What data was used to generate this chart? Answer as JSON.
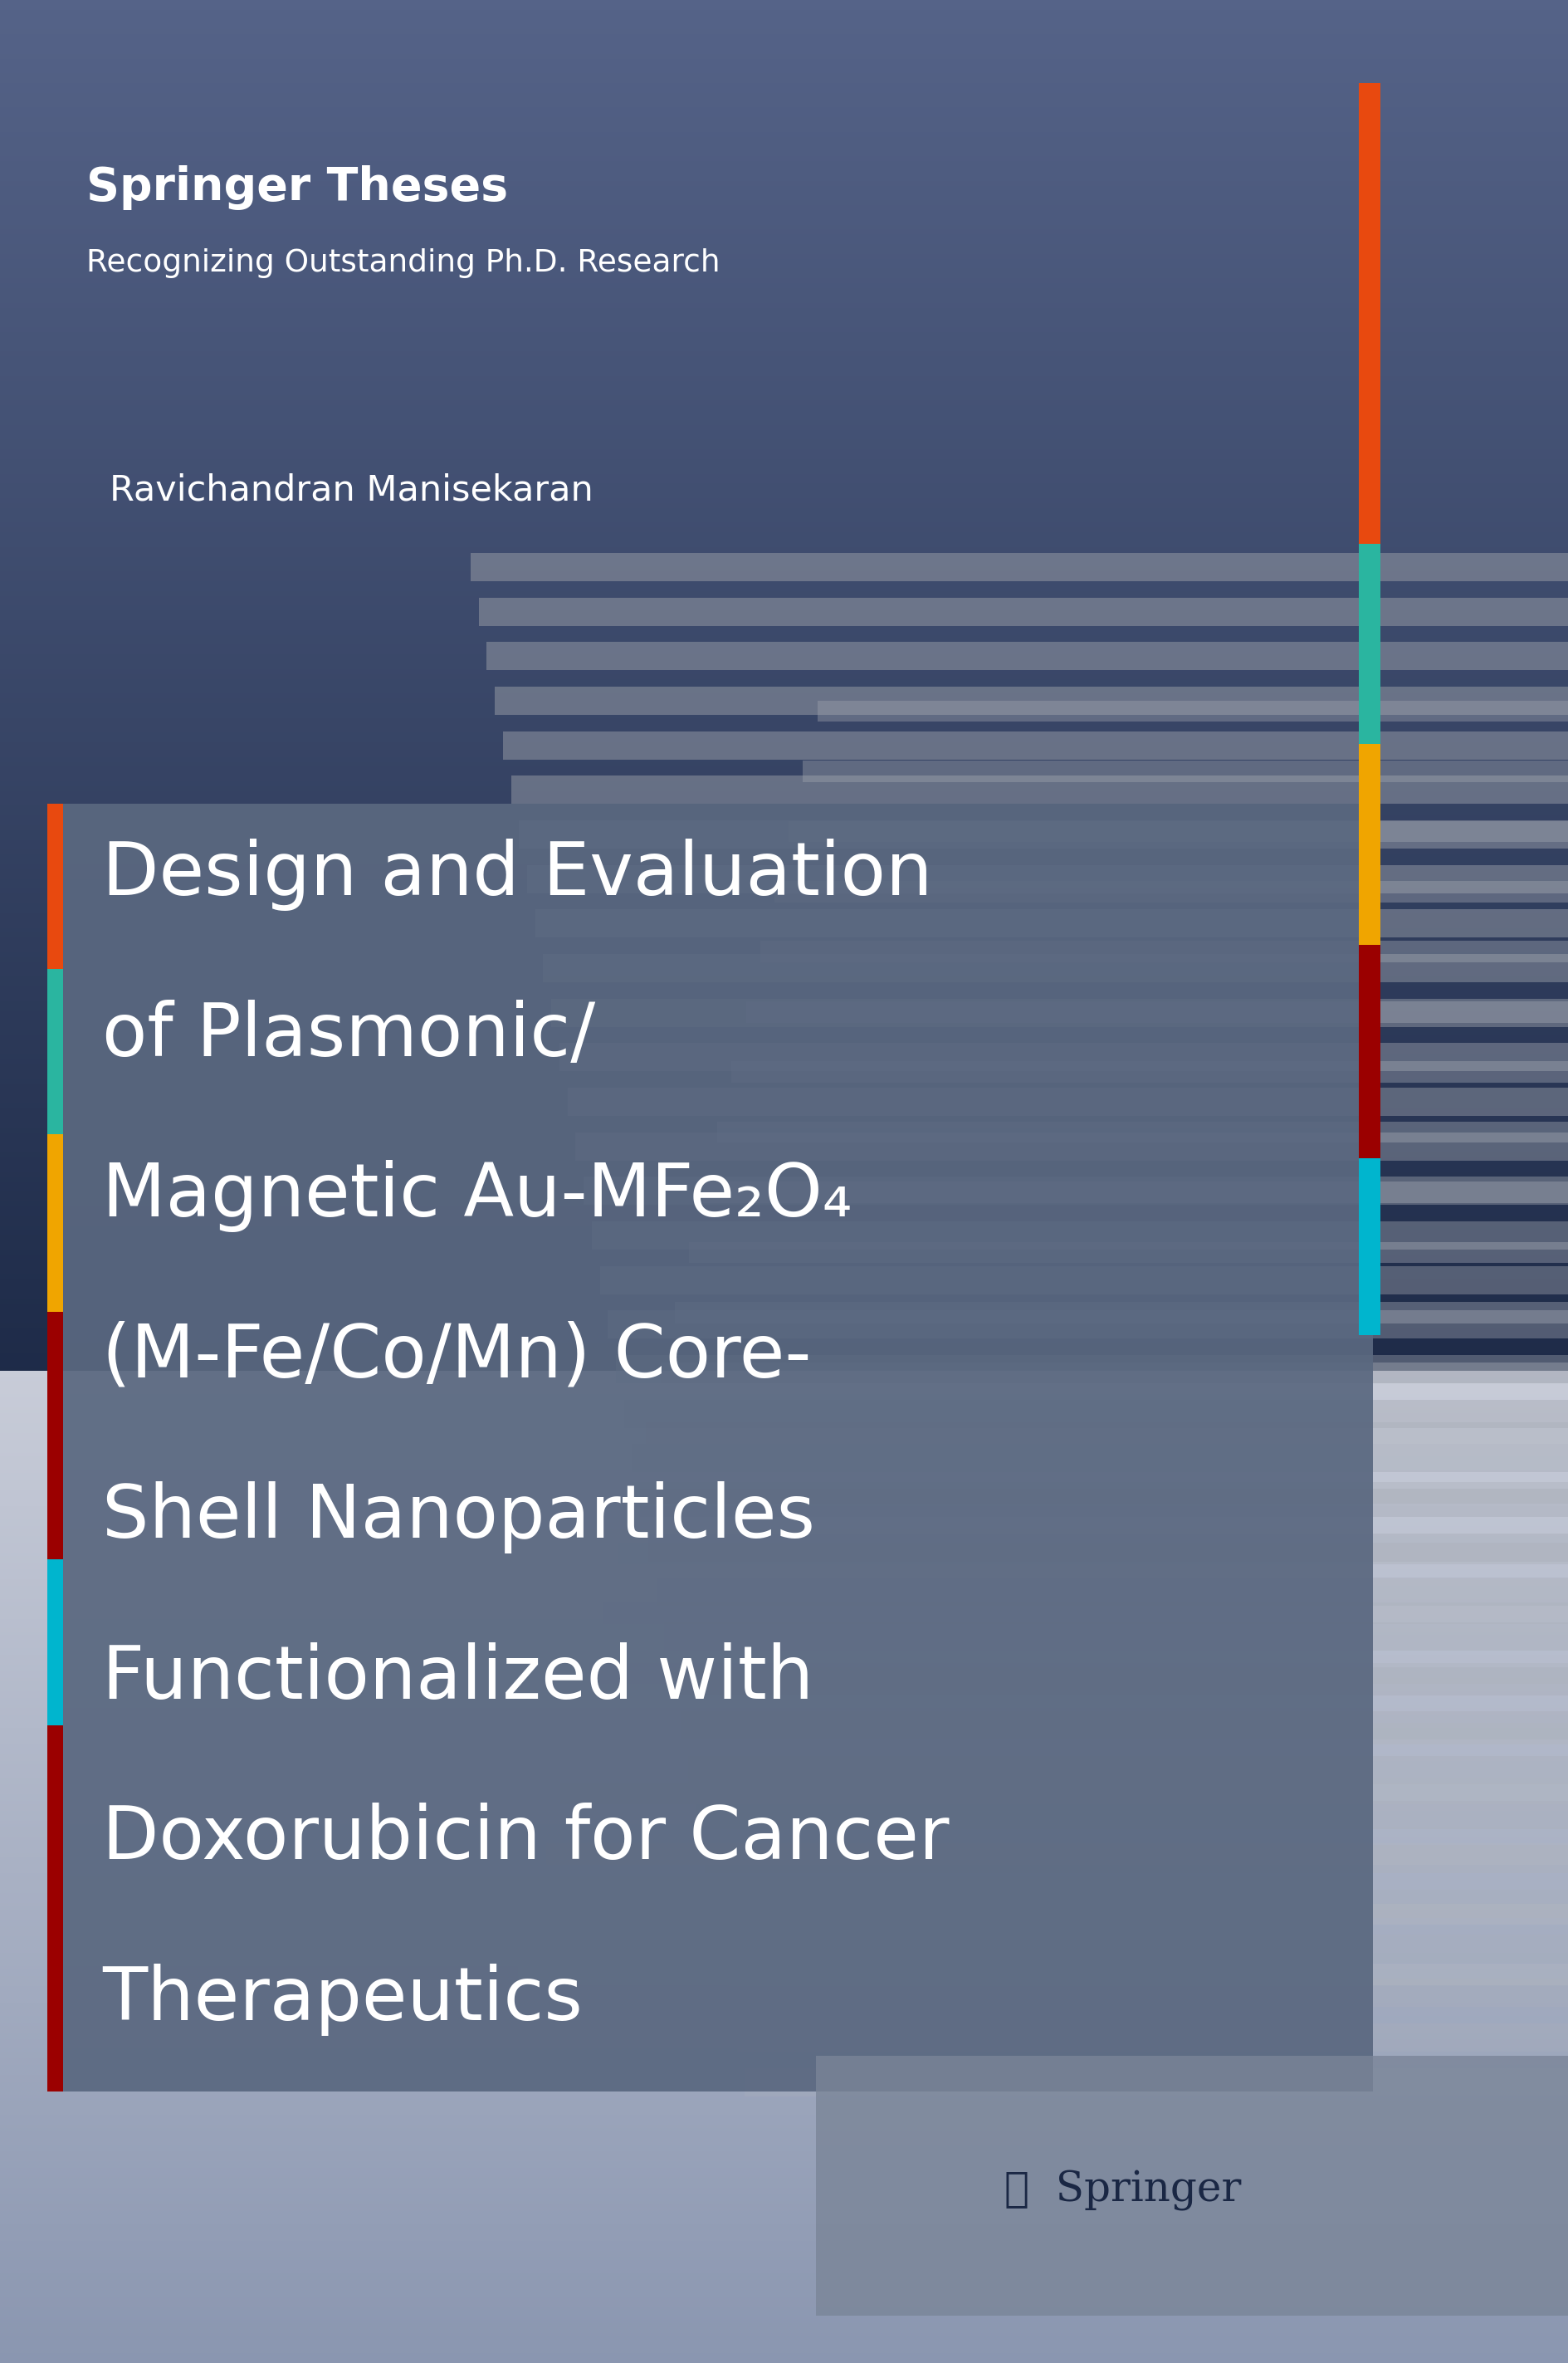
{
  "fig_width": 18.9,
  "fig_height": 28.46,
  "springer_theses_text": "Springer Theses",
  "springer_theses_subtitle": "Recognizing Outstanding Ph.D. Research",
  "author_name": "Ravichandran Manisekaran",
  "title_lines": [
    "Design and Evaluation",
    "of Plasmonic/",
    "Magnetic Au-MFe₂O₄",
    "(M-Fe/Co/Mn) Core-",
    "Shell Nanoparticles",
    "Functionalized with",
    "Doxorubicin for Cancer",
    "Therapeutics"
  ],
  "stripe_colors": [
    "#e8490f",
    "#2ab5a0",
    "#f0a500",
    "#9b0000",
    "#00b5ce"
  ],
  "text_color_white": "#ffffff",
  "text_color_dark": "#1a2744",
  "title_box_color": "#5a6880",
  "springer_text_color": "#1a2744",
  "bg_top": "#1a2744",
  "bg_mid": "#3d4e6e",
  "bg_bottom": "#d0d4de"
}
